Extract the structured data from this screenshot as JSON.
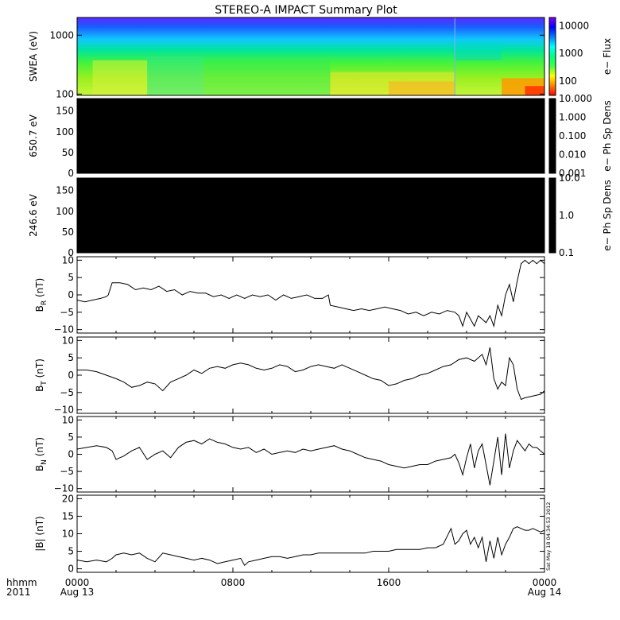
{
  "title": "STEREO-A IMPACT Summary Plot",
  "timestamp": "Sat May 18 04:34:53 2012",
  "time_axis": {
    "label_line1": "hhmm",
    "label_line2": "2011",
    "ticks": [
      {
        "t": 0,
        "label": "0000",
        "sub": "Aug 13"
      },
      {
        "t": 8,
        "label": "0800",
        "sub": ""
      },
      {
        "t": 16,
        "label": "1600",
        "sub": ""
      },
      {
        "t": 24,
        "label": "0000",
        "sub": "Aug 14"
      }
    ],
    "range_hours": [
      0,
      24
    ]
  },
  "chart_data": [
    {
      "type": "heatmap",
      "panel": "swea",
      "ylabel": "SWEA (eV)",
      "yscale": "log",
      "ylim": [
        95,
        2000
      ],
      "yticks": [
        {
          "v": 1000,
          "label": "1000"
        },
        {
          "v": 100,
          "label": "100"
        }
      ],
      "colorbar": {
        "label": "e− Flux",
        "scale": "log",
        "range": [
          30,
          20000
        ],
        "ticks": [
          {
            "v": 10000,
            "label": "10000"
          },
          {
            "v": 1000,
            "label": "1000"
          },
          {
            "v": 100,
            "label": "100"
          }
        ]
      },
      "colors": [
        "#ff0000",
        "#ff8000",
        "#ffff00",
        "#40ff40",
        "#00ff80",
        "#00ffff",
        "#0080ff",
        "#0000ff",
        "#8000ff"
      ]
    },
    {
      "type": "heatmap",
      "panel": "pad650",
      "ylabel": "650.7 eV",
      "ylim": [
        0,
        180
      ],
      "yticks": [
        {
          "v": 0,
          "label": "0"
        },
        {
          "v": 50,
          "label": "50"
        },
        {
          "v": 100,
          "label": "100"
        },
        {
          "v": 150,
          "label": "150"
        }
      ],
      "fill": "#000000",
      "colorbar": {
        "label": "e− Ph Sp Dens",
        "scale": "log",
        "range": [
          0.001,
          10
        ],
        "ticks": [
          {
            "v": 10,
            "label": "10.000"
          },
          {
            "v": 1,
            "label": "1.000"
          },
          {
            "v": 0.1,
            "label": "0.100"
          },
          {
            "v": 0.01,
            "label": "0.010"
          },
          {
            "v": 0.001,
            "label": "0.001"
          }
        ]
      }
    },
    {
      "type": "heatmap",
      "panel": "pad246",
      "ylabel": "246.6 eV",
      "ylim": [
        0,
        180
      ],
      "yticks": [
        {
          "v": 0,
          "label": "0"
        },
        {
          "v": 50,
          "label": "50"
        },
        {
          "v": 100,
          "label": "100"
        },
        {
          "v": 150,
          "label": "150"
        }
      ],
      "fill": "#000000",
      "colorbar": {
        "label": "e− Ph Sp Dens",
        "scale": "log",
        "range": [
          0.1,
          10
        ],
        "ticks": [
          {
            "v": 10,
            "label": "10.0"
          },
          {
            "v": 1,
            "label": "1.0"
          },
          {
            "v": 0.1,
            "label": "0.1"
          }
        ]
      }
    },
    {
      "type": "line",
      "panel": "br",
      "ylabel_main": "B",
      "ylabel_sub": "R",
      "ylabel_unit": " (nT)",
      "ylim": [
        -11,
        11
      ],
      "yticks": [
        {
          "v": -10,
          "label": "−10"
        },
        {
          "v": -5,
          "label": "−5"
        },
        {
          "v": 0,
          "label": "0"
        },
        {
          "v": 5,
          "label": "5"
        },
        {
          "v": 10,
          "label": "10"
        }
      ],
      "x": [
        0,
        0.4,
        0.8,
        1.2,
        1.5,
        1.6,
        1.8,
        2.2,
        2.6,
        3.0,
        3.4,
        3.8,
        4.2,
        4.6,
        5.0,
        5.4,
        5.8,
        6.2,
        6.6,
        7.0,
        7.4,
        7.8,
        8.2,
        8.6,
        9.0,
        9.4,
        9.8,
        10.2,
        10.6,
        11.0,
        11.4,
        11.8,
        12.2,
        12.6,
        12.9,
        13.0,
        13.4,
        13.8,
        14.2,
        14.6,
        15.0,
        15.4,
        15.8,
        16.2,
        16.6,
        17.0,
        17.4,
        17.8,
        18.2,
        18.6,
        19.0,
        19.4,
        19.6,
        19.8,
        20.0,
        20.2,
        20.4,
        20.6,
        20.8,
        21.0,
        21.2,
        21.4,
        21.6,
        21.8,
        22.0,
        22.2,
        22.4,
        22.6,
        22.8,
        23.0,
        23.2,
        23.4,
        23.6,
        23.8,
        24.0
      ],
      "y": [
        -1.5,
        -2,
        -1.5,
        -1,
        -0.5,
        0,
        3.5,
        3.5,
        3,
        1.5,
        2,
        1.5,
        2.5,
        1,
        1.5,
        0,
        1,
        0.5,
        0.5,
        -0.5,
        0,
        -1,
        0,
        -1,
        0,
        -0.5,
        0,
        -1.5,
        0,
        -1,
        -0.5,
        0,
        -1,
        -1,
        0,
        -3,
        -3.5,
        -4,
        -4.5,
        -4,
        -4.5,
        -4,
        -3.5,
        -4,
        -4.5,
        -5.5,
        -5,
        -6,
        -5,
        -5.5,
        -4.5,
        -5,
        -6,
        -9,
        -5,
        -7,
        -9,
        -6,
        -7,
        -8,
        -6,
        -9,
        -3,
        -6,
        0,
        3,
        -2,
        4,
        9,
        10,
        9,
        10,
        9,
        10,
        9
      ]
    },
    {
      "type": "line",
      "panel": "bt",
      "ylabel_main": "B",
      "ylabel_sub": "T",
      "ylabel_unit": " (nT)",
      "ylim": [
        -11,
        11
      ],
      "yticks": [
        {
          "v": -10,
          "label": "−10"
        },
        {
          "v": -5,
          "label": "−5"
        },
        {
          "v": 0,
          "label": "0"
        },
        {
          "v": 5,
          "label": "5"
        },
        {
          "v": 10,
          "label": "10"
        }
      ],
      "x": [
        0,
        0.5,
        1.0,
        1.5,
        2.0,
        2.4,
        2.8,
        3.2,
        3.6,
        4.0,
        4.4,
        4.8,
        5.2,
        5.6,
        6.0,
        6.4,
        6.8,
        7.2,
        7.6,
        8.0,
        8.4,
        8.8,
        9.2,
        9.6,
        10.0,
        10.4,
        10.8,
        11.2,
        11.6,
        12.0,
        12.4,
        12.8,
        13.2,
        13.6,
        14.0,
        14.4,
        14.8,
        15.2,
        15.6,
        16.0,
        16.4,
        16.8,
        17.2,
        17.6,
        18.0,
        18.4,
        18.8,
        19.2,
        19.6,
        20.0,
        20.4,
        20.8,
        21.0,
        21.2,
        21.4,
        21.6,
        21.8,
        22.0,
        22.2,
        22.4,
        22.6,
        22.8,
        23.0,
        23.4,
        23.8,
        24.0
      ],
      "y": [
        1.5,
        1.5,
        1,
        0,
        -1,
        -2,
        -3.5,
        -3,
        -2,
        -2.5,
        -4.5,
        -2,
        -1,
        0,
        1.5,
        0.5,
        2,
        2.5,
        2,
        3,
        3.5,
        3,
        2,
        1.5,
        2,
        3,
        2.5,
        1,
        1.5,
        2.5,
        3,
        2.5,
        2,
        3,
        2,
        1,
        0,
        -1,
        -1.5,
        -3,
        -2.5,
        -1.5,
        -1,
        0,
        0.5,
        1.5,
        2.5,
        3,
        4.5,
        5,
        4,
        6,
        3,
        8,
        -1,
        -4,
        -2,
        -3,
        5,
        3,
        -4,
        -7,
        -6.5,
        -6,
        -5.5,
        -4.5
      ]
    },
    {
      "type": "line",
      "panel": "bn",
      "ylabel_main": "B",
      "ylabel_sub": "N",
      "ylabel_unit": " (nT)",
      "ylim": [
        -11,
        11
      ],
      "yticks": [
        {
          "v": -10,
          "label": "−10"
        },
        {
          "v": -5,
          "label": "−5"
        },
        {
          "v": 0,
          "label": "0"
        },
        {
          "v": 5,
          "label": "5"
        },
        {
          "v": 10,
          "label": "10"
        }
      ],
      "x": [
        0,
        0.5,
        1.0,
        1.5,
        1.8,
        2.0,
        2.4,
        2.8,
        3.2,
        3.6,
        4.0,
        4.4,
        4.8,
        5.2,
        5.6,
        6.0,
        6.4,
        6.8,
        7.2,
        7.6,
        8.0,
        8.4,
        8.8,
        9.2,
        9.6,
        10.0,
        10.4,
        10.8,
        11.2,
        11.6,
        12.0,
        12.4,
        12.8,
        13.2,
        13.6,
        14.0,
        14.4,
        14.8,
        15.2,
        15.6,
        16.0,
        16.4,
        16.8,
        17.2,
        17.6,
        18.0,
        18.4,
        18.8,
        19.2,
        19.4,
        19.6,
        19.8,
        20.0,
        20.2,
        20.4,
        20.6,
        20.8,
        21.0,
        21.2,
        21.4,
        21.6,
        21.8,
        22.0,
        22.2,
        22.4,
        22.6,
        22.8,
        23.0,
        23.2,
        23.4,
        23.6,
        23.8,
        24.0
      ],
      "y": [
        1.5,
        2,
        2.5,
        2,
        1,
        -1.5,
        -0.5,
        1,
        2,
        -1.5,
        0,
        1,
        -1,
        2,
        3.5,
        4,
        3,
        4.5,
        3.5,
        3,
        2,
        1.5,
        2,
        0.5,
        1.5,
        0,
        0.5,
        1,
        0.5,
        1.5,
        1,
        1.5,
        2,
        2.5,
        1.5,
        1,
        0,
        -1,
        -1.5,
        -2,
        -3,
        -3.5,
        -4,
        -3.5,
        -3,
        -3,
        -2,
        -1.5,
        -1,
        0,
        -2.5,
        -6,
        -1,
        3,
        -4,
        1,
        3,
        -3,
        -9,
        -2,
        5,
        -6,
        6,
        -4,
        1,
        4,
        2.5,
        1,
        3,
        2,
        2,
        1,
        0
      ]
    },
    {
      "type": "line",
      "panel": "bmag",
      "ylabel_main": "|B|",
      "ylabel_sub": "",
      "ylabel_unit": " (nT)",
      "ylim": [
        -1,
        21
      ],
      "yticks": [
        {
          "v": 0,
          "label": "0"
        },
        {
          "v": 5,
          "label": "5"
        },
        {
          "v": 10,
          "label": "10"
        },
        {
          "v": 15,
          "label": "15"
        },
        {
          "v": 20,
          "label": "20"
        }
      ],
      "x": [
        0,
        0.5,
        1.0,
        1.5,
        1.8,
        2.0,
        2.4,
        2.8,
        3.2,
        3.6,
        4.0,
        4.4,
        4.8,
        5.2,
        5.6,
        6.0,
        6.4,
        6.8,
        7.2,
        7.6,
        8.0,
        8.4,
        8.6,
        8.8,
        9.2,
        9.6,
        10.0,
        10.4,
        10.8,
        11.2,
        11.6,
        12.0,
        12.4,
        12.8,
        13.2,
        13.6,
        14.0,
        14.4,
        14.8,
        15.2,
        15.6,
        16.0,
        16.4,
        16.8,
        17.2,
        17.6,
        18.0,
        18.4,
        18.8,
        19.2,
        19.4,
        19.6,
        19.8,
        20.0,
        20.2,
        20.4,
        20.6,
        20.8,
        21.0,
        21.2,
        21.4,
        21.6,
        21.8,
        22.0,
        22.2,
        22.4,
        22.6,
        22.8,
        23.0,
        23.2,
        23.4,
        23.6,
        23.8,
        24.0
      ],
      "y": [
        2.5,
        2,
        2.5,
        2,
        3,
        4,
        4.5,
        4,
        4.5,
        3,
        2,
        4.5,
        4,
        3.5,
        3,
        2.5,
        3,
        2.5,
        1.5,
        2,
        2.5,
        3,
        1,
        2,
        2.5,
        3,
        3.5,
        3.5,
        3,
        3.5,
        4,
        4,
        4.5,
        4.5,
        4.5,
        4.5,
        4.5,
        4.5,
        4.5,
        5,
        5,
        5,
        5.5,
        5.5,
        5.5,
        5.5,
        6,
        6,
        7,
        11.5,
        7,
        8,
        10,
        11,
        7,
        9,
        6,
        9,
        2,
        8,
        3,
        9,
        4,
        7,
        9,
        11.5,
        12,
        11.5,
        11,
        11,
        11.5,
        11,
        10.5,
        11
      ]
    }
  ]
}
